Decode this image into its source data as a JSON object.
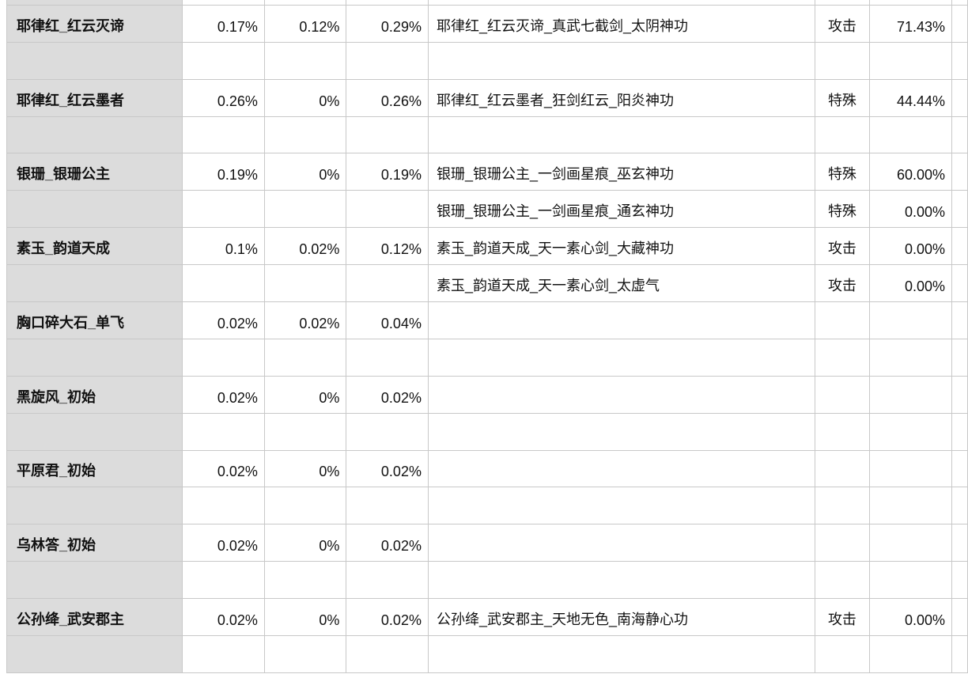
{
  "colors": {
    "name_column_bg": "#dcdcdc",
    "grid": "#c8c8c8"
  },
  "rows": [
    {
      "name": "",
      "a": "",
      "b": "",
      "c": "",
      "combo": "",
      "type": "",
      "rate": ""
    },
    {
      "name": "耶律红_红云灭谛",
      "a": "0.17%",
      "b": "0.12%",
      "c": "0.29%",
      "combo": "耶律红_红云灭谛_真武七截剑_太阴神功",
      "type": "攻击",
      "rate": "71.43%"
    },
    {
      "name": "",
      "a": "",
      "b": "",
      "c": "",
      "combo": "",
      "type": "",
      "rate": ""
    },
    {
      "name": "耶律红_红云墨者",
      "a": "0.26%",
      "b": "0%",
      "c": "0.26%",
      "combo": "耶律红_红云墨者_狂剑红云_阳炎神功",
      "type": "特殊",
      "rate": "44.44%"
    },
    {
      "name": "",
      "a": "",
      "b": "",
      "c": "",
      "combo": "",
      "type": "",
      "rate": ""
    },
    {
      "name": "银珊_银珊公主",
      "a": "0.19%",
      "b": "0%",
      "c": "0.19%",
      "combo": "银珊_银珊公主_一剑画星痕_巫玄神功",
      "type": "特殊",
      "rate": "60.00%"
    },
    {
      "name": "",
      "a": "",
      "b": "",
      "c": "",
      "combo": "银珊_银珊公主_一剑画星痕_通玄神功",
      "type": "特殊",
      "rate": "0.00%"
    },
    {
      "name": "素玉_韵道天成",
      "a": "0.1%",
      "b": "0.02%",
      "c": "0.12%",
      "combo": "素玉_韵道天成_天一素心剑_大藏神功",
      "type": "攻击",
      "rate": "0.00%"
    },
    {
      "name": "",
      "a": "",
      "b": "",
      "c": "",
      "combo": "素玉_韵道天成_天一素心剑_太虚气",
      "type": "攻击",
      "rate": "0.00%"
    },
    {
      "name": "胸口碎大石_单飞",
      "a": "0.02%",
      "b": "0.02%",
      "c": "0.04%",
      "combo": "",
      "type": "",
      "rate": ""
    },
    {
      "name": "",
      "a": "",
      "b": "",
      "c": "",
      "combo": "",
      "type": "",
      "rate": ""
    },
    {
      "name": "黑旋风_初始",
      "a": "0.02%",
      "b": "0%",
      "c": "0.02%",
      "combo": "",
      "type": "",
      "rate": ""
    },
    {
      "name": "",
      "a": "",
      "b": "",
      "c": "",
      "combo": "",
      "type": "",
      "rate": ""
    },
    {
      "name": "平原君_初始",
      "a": "0.02%",
      "b": "0%",
      "c": "0.02%",
      "combo": "",
      "type": "",
      "rate": ""
    },
    {
      "name": "",
      "a": "",
      "b": "",
      "c": "",
      "combo": "",
      "type": "",
      "rate": ""
    },
    {
      "name": "乌林答_初始",
      "a": "0.02%",
      "b": "0%",
      "c": "0.02%",
      "combo": "",
      "type": "",
      "rate": ""
    },
    {
      "name": "",
      "a": "",
      "b": "",
      "c": "",
      "combo": "",
      "type": "",
      "rate": ""
    },
    {
      "name": "公孙绛_武安郡主",
      "a": "0.02%",
      "b": "0%",
      "c": "0.02%",
      "combo": "公孙绛_武安郡主_天地无色_南海静心功",
      "type": "攻击",
      "rate": "0.00%"
    },
    {
      "name": "",
      "a": "",
      "b": "",
      "c": "",
      "combo": "",
      "type": "",
      "rate": ""
    }
  ]
}
